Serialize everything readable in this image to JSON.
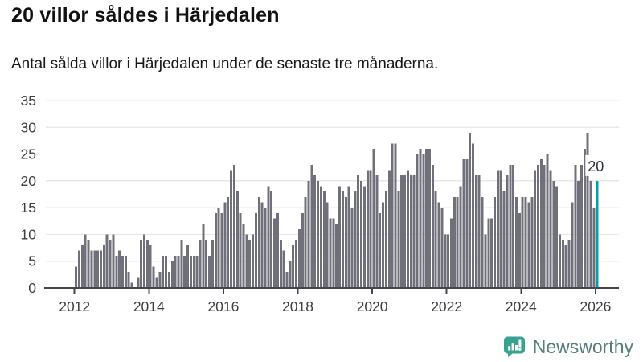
{
  "header": {
    "title": "20 villor såldes i Härjedalen",
    "subtitle": "Antal sålda villor i Härjedalen under de senaste tre månaderna."
  },
  "chart_data": {
    "type": "bar",
    "title": "20 villor såldes i Härjedalen",
    "subtitle": "Antal sålda villor i Härjedalen under de senaste tre månaderna.",
    "x_start": "2012-01",
    "x_frequency": "monthly",
    "x_tick_years": [
      2012,
      2014,
      2016,
      2018,
      2020,
      2022,
      2024,
      2026
    ],
    "y_ticks": [
      0,
      5,
      10,
      15,
      20,
      25,
      30,
      35
    ],
    "ylim": [
      0,
      35
    ],
    "grid": "horizontal",
    "legend": "none",
    "bar_color": "#70707a",
    "grid_color": "#e7e7ea",
    "axis_color": "#45454d",
    "label_color": "#3d3f44",
    "values": [
      4,
      7,
      8,
      10,
      9,
      7,
      7,
      7,
      7,
      8,
      10,
      9,
      10,
      6,
      7,
      6,
      6,
      3,
      1,
      0,
      2,
      9,
      10,
      9,
      8,
      4,
      2,
      3,
      6,
      6,
      3,
      5,
      6,
      6,
      9,
      6,
      8,
      6,
      6,
      6,
      9,
      12,
      9,
      6,
      9,
      14,
      15,
      14,
      16,
      17,
      22,
      23,
      18,
      14,
      12,
      10,
      9,
      10,
      14,
      17,
      16,
      15,
      19,
      18,
      13,
      14,
      9,
      7,
      3,
      5,
      8,
      9,
      11,
      14,
      17,
      20,
      23,
      21,
      20,
      19,
      18,
      16,
      13,
      13,
      12,
      19,
      18,
      17,
      19,
      15,
      18,
      21,
      20,
      19,
      22,
      22,
      26,
      21,
      14,
      16,
      18,
      22,
      27,
      27,
      18,
      21,
      21,
      22,
      21,
      21,
      25,
      26,
      25,
      26,
      26,
      23,
      18,
      16,
      15,
      10,
      10,
      13,
      17,
      17,
      19,
      24,
      24,
      29,
      27,
      21,
      21,
      17,
      10,
      13,
      13,
      17,
      22,
      22,
      18,
      21,
      23,
      23,
      17,
      14,
      17,
      17,
      16,
      17,
      22,
      23,
      24,
      23,
      25,
      22,
      20,
      19,
      10,
      9,
      8,
      9,
      16,
      23,
      20,
      23,
      26,
      29,
      20,
      15,
      20
    ],
    "highlight": {
      "index": 168,
      "value": 20,
      "label": "20",
      "color": "#00a3aa"
    }
  },
  "footer": {
    "brand": "Newsworthy",
    "icon": "newsworthy-chart-bubble-icon",
    "icon_color": "#38a18f",
    "text_color": "#57807b"
  }
}
